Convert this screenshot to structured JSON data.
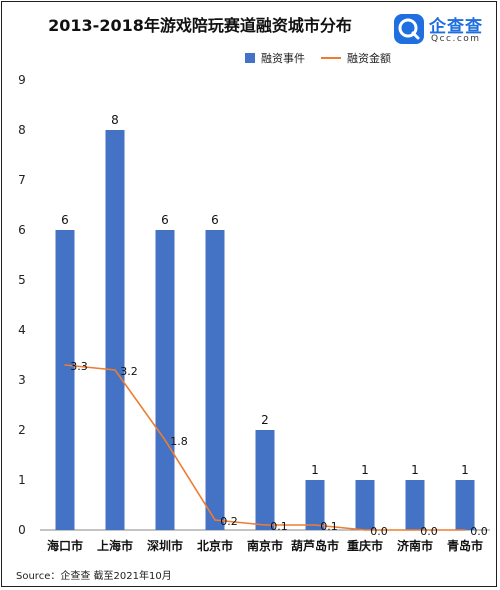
{
  "title": "2013-2018年游戏陪玩赛道融资城市分布",
  "logo": {
    "name": "企查查",
    "sub": "Qcc.com",
    "mark": "qcc-logo-icon"
  },
  "source": "Source：企查查 截至2021年10月",
  "colors": {
    "bar": "#4472c4",
    "line": "#ed7d31",
    "brand": "#1f6fe0"
  },
  "chart_data": {
    "type": "bar",
    "categories": [
      "海口市",
      "上海市",
      "深圳市",
      "北京市",
      "南京市",
      "葫芦岛市",
      "重庆市",
      "济南市",
      "青岛市"
    ],
    "series": [
      {
        "name": "融资事件",
        "type": "bar",
        "values": [
          6,
          8,
          6,
          6,
          2,
          1,
          1,
          1,
          1
        ]
      },
      {
        "name": "融资金额",
        "type": "line",
        "values": [
          3.3,
          3.2,
          1.8,
          0.2,
          0.1,
          0.1,
          0.0,
          0.0,
          0.0
        ]
      }
    ],
    "line_labels": [
      "3.3",
      "3.2",
      "1.8",
      "0.2",
      "0.1",
      "0.1",
      "0.0",
      "0.0",
      "0.0"
    ],
    "ylim": [
      0,
      9
    ],
    "yticks": [
      0,
      1,
      2,
      3,
      4,
      5,
      6,
      7,
      8,
      9
    ],
    "legend": "top-right",
    "grid": false
  }
}
